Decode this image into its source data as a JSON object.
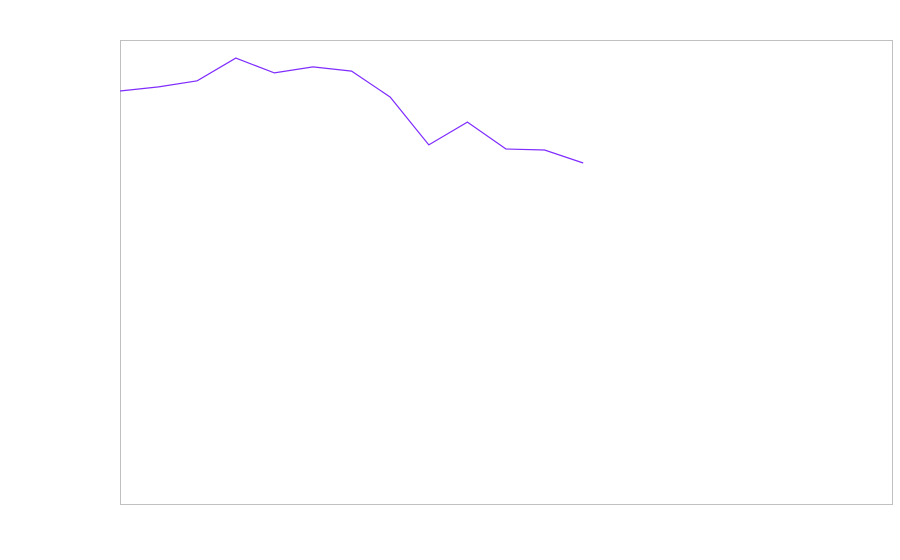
{
  "chart_data": {
    "type": "line",
    "title": "",
    "xlabel": "",
    "ylabel": "",
    "x": [
      0,
      1,
      2,
      3,
      4,
      5,
      6,
      7,
      8,
      9,
      10,
      11,
      12
    ],
    "xlim": [
      0,
      20
    ],
    "ylim": [
      0,
      100
    ],
    "grid": false,
    "legend": "none",
    "series": [
      {
        "values": [
          89.0,
          89.9,
          91.2,
          96.1,
          92.9,
          94.2,
          93.3,
          87.7,
          77.4,
          82.3,
          76.5,
          76.3,
          73.5
        ],
        "color": "#7f2cff"
      }
    ],
    "frame_color": "#c0c0c0"
  }
}
